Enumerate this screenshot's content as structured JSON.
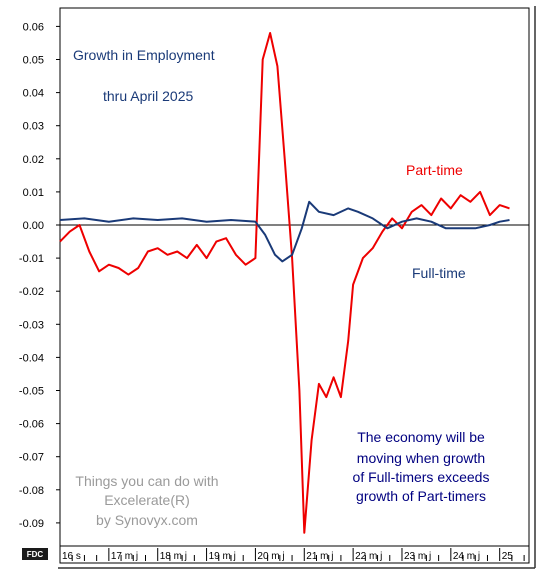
{
  "chart_data": {
    "type": "line",
    "title": "Growth in Employment",
    "subtitle": "thru April 2025",
    "xlabel": "",
    "ylabel": "",
    "ylim": [
      -0.095,
      0.065
    ],
    "y_ticks": [
      "0.06",
      "0.05",
      "0.04",
      "0.03",
      "0.02",
      "0.01",
      "0.00",
      "-0.01",
      "-0.02",
      "-0.03",
      "-0.04",
      "-0.05",
      "-0.06",
      "-0.07",
      "-0.08",
      "-0.09"
    ],
    "x_ticks": [
      "16 s",
      "17 m j",
      "18 m j",
      "19 m j",
      "20 m j",
      "21 m j",
      "22 m j",
      "23 m j",
      "24 m j",
      "25"
    ],
    "grid": false,
    "series": [
      {
        "name": "Part-time",
        "color": "#ee0000",
        "x": [
          2016.0,
          2016.2,
          2016.4,
          2016.6,
          2016.8,
          2017.0,
          2017.2,
          2017.4,
          2017.6,
          2017.8,
          2018.0,
          2018.2,
          2018.4,
          2018.6,
          2018.8,
          2019.0,
          2019.2,
          2019.4,
          2019.6,
          2019.8,
          2020.0,
          2020.15,
          2020.3,
          2020.45,
          2020.6,
          2020.75,
          2020.9,
          2021.0,
          2021.15,
          2021.3,
          2021.45,
          2021.6,
          2021.75,
          2021.9,
          2022.0,
          2022.2,
          2022.4,
          2022.6,
          2022.8,
          2023.0,
          2023.2,
          2023.4,
          2023.6,
          2023.8,
          2024.0,
          2024.2,
          2024.4,
          2024.6,
          2024.8,
          2025.0,
          2025.2
        ],
        "y": [
          -0.005,
          -0.002,
          0.0,
          -0.008,
          -0.014,
          -0.012,
          -0.013,
          -0.015,
          -0.013,
          -0.008,
          -0.007,
          -0.009,
          -0.008,
          -0.01,
          -0.006,
          -0.01,
          -0.005,
          -0.004,
          -0.009,
          -0.012,
          -0.01,
          0.05,
          0.058,
          0.048,
          0.02,
          -0.01,
          -0.05,
          -0.093,
          -0.065,
          -0.048,
          -0.052,
          -0.046,
          -0.052,
          -0.035,
          -0.018,
          -0.01,
          -0.007,
          -0.002,
          0.002,
          -0.001,
          0.004,
          0.006,
          0.003,
          0.008,
          0.005,
          0.009,
          0.007,
          0.01,
          0.003,
          0.006,
          0.005
        ]
      },
      {
        "name": "Full-time",
        "color": "#1a3a78",
        "x": [
          2016.0,
          2016.5,
          2017.0,
          2017.5,
          2018.0,
          2018.5,
          2019.0,
          2019.5,
          2020.0,
          2020.2,
          2020.4,
          2020.55,
          2020.75,
          2020.95,
          2021.1,
          2021.3,
          2021.6,
          2021.9,
          2022.1,
          2022.4,
          2022.7,
          2023.0,
          2023.3,
          2023.6,
          2023.9,
          2024.2,
          2024.5,
          2024.8,
          2025.0,
          2025.2
        ],
        "y": [
          0.0015,
          0.002,
          0.001,
          0.002,
          0.0015,
          0.002,
          0.001,
          0.0015,
          0.001,
          -0.003,
          -0.009,
          -0.011,
          -0.009,
          -0.001,
          0.007,
          0.004,
          0.003,
          0.005,
          0.004,
          0.002,
          -0.001,
          0.001,
          0.002,
          0.001,
          -0.001,
          -0.001,
          -0.001,
          0.0,
          0.001,
          0.0015
        ]
      }
    ],
    "annotations": {
      "title_line1": "Growth in Employment",
      "title_line2": "thru April 2025",
      "part_time_label": "Part-time",
      "full_time_label": "Full-time",
      "note_line1": "The economy will be",
      "note_line2": "moving when growth",
      "note_line3": "of Full-timers exceeds",
      "note_line4": "growth of Part-timers",
      "watermark_line1": "Things you can do with",
      "watermark_line2": "Excelerate(R)",
      "watermark_line3": "by Synovyx.com",
      "logo_text": "FDC"
    }
  }
}
